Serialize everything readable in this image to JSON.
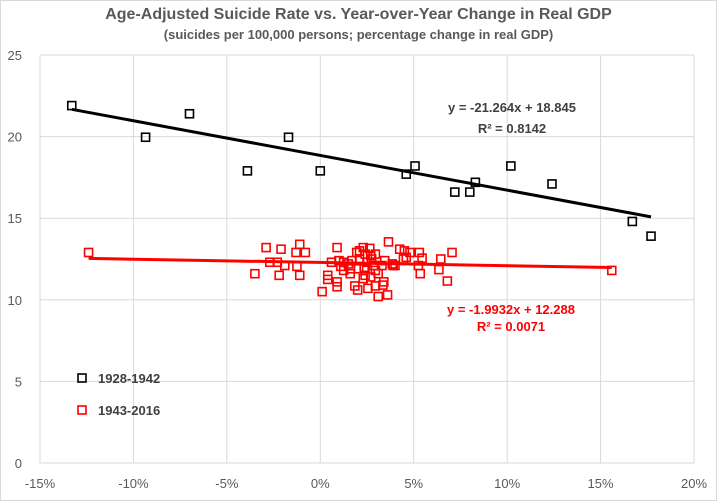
{
  "chart_data": {
    "type": "scatter",
    "title": "Age-Adjusted Suicide Rate vs. Year-over-Year Change in Real GDP",
    "subtitle": "(suicides per 100,000 persons; percentage change in real GDP)",
    "xlim": [
      -15,
      20
    ],
    "ylim": [
      0,
      25
    ],
    "x_ticks": [
      "-15%",
      "-10%",
      "-5%",
      "0%",
      "5%",
      "10%",
      "15%",
      "20%"
    ],
    "x_tick_values": [
      -15,
      -10,
      -5,
      0,
      5,
      10,
      15,
      20
    ],
    "y_ticks": [
      "0",
      "5",
      "10",
      "15",
      "20",
      "25"
    ],
    "y_tick_values": [
      0,
      5,
      10,
      15,
      20,
      25
    ],
    "grid": true,
    "legend_placement": "bottom-left",
    "series": [
      {
        "name": "1928-1942",
        "color": "#000000",
        "marker": "hollow-square",
        "points": [
          [
            -13.3,
            21.9
          ],
          [
            -9.35,
            19.96
          ],
          [
            -7.0,
            21.4
          ],
          [
            -1.7,
            19.96
          ],
          [
            -3.9,
            17.9
          ],
          [
            0.0,
            17.9
          ],
          [
            4.6,
            17.7
          ],
          [
            5.07,
            18.2
          ],
          [
            7.2,
            16.6
          ],
          [
            8.0,
            16.6
          ],
          [
            8.3,
            17.2
          ],
          [
            10.2,
            18.2
          ],
          [
            12.4,
            17.1
          ],
          [
            16.7,
            14.8
          ],
          [
            17.7,
            13.9
          ]
        ],
        "trendline": {
          "slope": -21.264,
          "intercept": 18.845,
          "x_range": [
            -13.3,
            17.7
          ],
          "equation": "y = -21.264x + 18.845",
          "r2": "R² = 0.8142"
        }
      },
      {
        "name": "1943-2016",
        "color": "#ff0000",
        "marker": "hollow-square",
        "points": [
          [
            -12.4,
            12.9
          ],
          [
            -2.9,
            13.2
          ],
          [
            -2.1,
            13.1
          ],
          [
            -1.1,
            13.4
          ],
          [
            -1.3,
            12.9
          ],
          [
            -0.8,
            12.9
          ],
          [
            -2.7,
            12.3
          ],
          [
            -2.3,
            12.3
          ],
          [
            -1.9,
            12.1
          ],
          [
            -1.25,
            12.05
          ],
          [
            -3.5,
            11.6
          ],
          [
            -2.2,
            11.5
          ],
          [
            -1.1,
            11.5
          ],
          [
            0.9,
            13.2
          ],
          [
            0.1,
            10.5
          ],
          [
            0.4,
            11.5
          ],
          [
            0.4,
            11.25
          ],
          [
            0.9,
            11.1
          ],
          [
            0.9,
            10.8
          ],
          [
            0.6,
            12.3
          ],
          [
            1.0,
            12.4
          ],
          [
            1.1,
            12.05
          ],
          [
            1.5,
            12.2
          ],
          [
            1.6,
            11.6
          ],
          [
            1.7,
            12.4
          ],
          [
            1.85,
            10.85
          ],
          [
            2.0,
            10.6
          ],
          [
            1.95,
            12.9
          ],
          [
            2.1,
            13.0
          ],
          [
            2.3,
            13.2
          ],
          [
            2.4,
            12.8
          ],
          [
            2.35,
            11.9
          ],
          [
            2.4,
            11.5
          ],
          [
            2.55,
            10.7
          ],
          [
            2.7,
            12.7
          ],
          [
            2.75,
            12.5
          ],
          [
            2.85,
            12.1
          ],
          [
            2.95,
            12.8
          ],
          [
            2.95,
            11.8
          ],
          [
            2.7,
            11.4
          ],
          [
            3.1,
            11.6
          ],
          [
            2.95,
            10.85
          ],
          [
            3.1,
            10.2
          ],
          [
            3.4,
            11.1
          ],
          [
            3.35,
            10.9
          ],
          [
            3.45,
            12.4
          ],
          [
            3.6,
            10.3
          ],
          [
            3.65,
            13.55
          ],
          [
            3.85,
            12.2
          ],
          [
            4.0,
            12.1
          ],
          [
            4.25,
            13.1
          ],
          [
            4.5,
            13.0
          ],
          [
            4.45,
            12.5
          ],
          [
            4.8,
            12.9
          ],
          [
            4.6,
            12.6
          ],
          [
            5.3,
            12.9
          ],
          [
            5.45,
            12.55
          ],
          [
            5.25,
            12.1
          ],
          [
            5.35,
            11.6
          ],
          [
            6.45,
            12.5
          ],
          [
            6.35,
            11.85
          ],
          [
            7.05,
            12.9
          ],
          [
            6.8,
            11.15
          ],
          [
            15.6,
            11.8
          ],
          [
            1.25,
            12.3
          ],
          [
            1.6,
            11.9
          ],
          [
            2.1,
            12.5
          ],
          [
            2.5,
            12.3
          ],
          [
            2.05,
            11.9
          ],
          [
            3.3,
            12.1
          ],
          [
            3.9,
            12.1
          ],
          [
            1.25,
            11.8
          ],
          [
            2.65,
            13.15
          ],
          [
            2.3,
            11.3
          ]
        ],
        "trendline": {
          "slope": -1.9932,
          "intercept": 12.288,
          "x_range": [
            -12.4,
            15.6
          ],
          "equation": "y = -1.9932x + 12.288",
          "r2": "R² = 0.0071"
        }
      }
    ]
  }
}
